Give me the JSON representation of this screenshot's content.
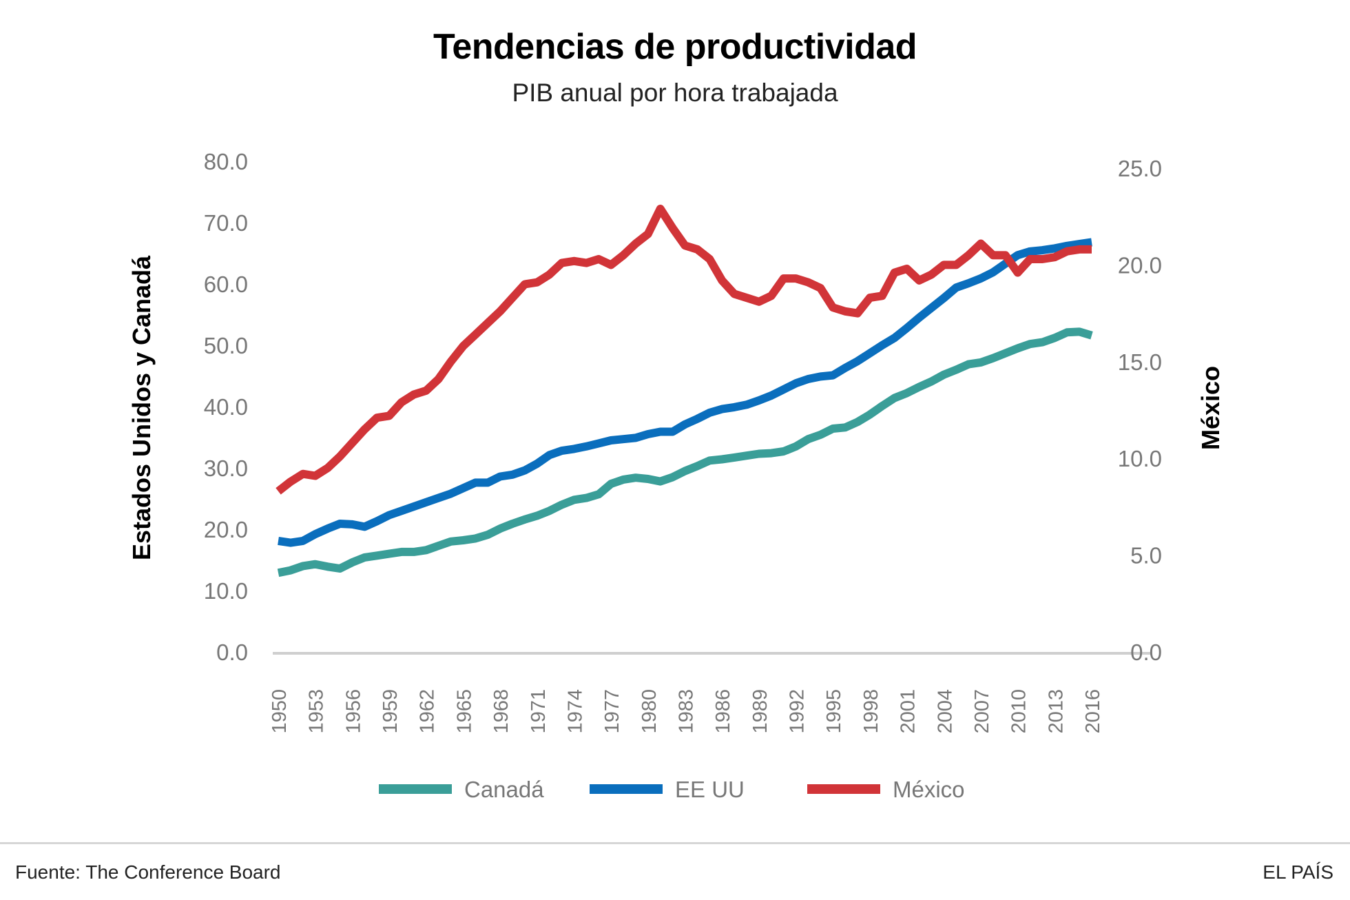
{
  "header": {
    "title": "Tendencias de productividad",
    "subtitle": "PIB anual por hora trabajada"
  },
  "footer": {
    "source": "Fuente: The Conference Board",
    "brand": "EL PAÍS"
  },
  "chart_data": {
    "type": "line",
    "title": "Tendencias de productividad",
    "subtitle": "PIB anual por hora trabajada",
    "ylabel_left": "Estados Unidos y Canadá",
    "ylabel_right": "México",
    "ylim_left": [
      0,
      80
    ],
    "ylim_right": [
      0,
      25
    ],
    "yticks_left": [
      "0.0",
      "10.0",
      "20.0",
      "30.0",
      "40.0",
      "50.0",
      "60.0",
      "70.0",
      "80.0"
    ],
    "yticks_right": [
      "0.0",
      "5.0",
      "10.0",
      "15.0",
      "20.0",
      "25.0"
    ],
    "xticks": [
      "1950",
      "1953",
      "1956",
      "1959",
      "1962",
      "1965",
      "1968",
      "1971",
      "1974",
      "1977",
      "1980",
      "1983",
      "1986",
      "1989",
      "1992",
      "1995",
      "1998",
      "2001",
      "2004",
      "2007",
      "2010",
      "2013",
      "2016"
    ],
    "x_start": 1950,
    "x_end": 2016,
    "grid": false,
    "legend_placement": "bottom",
    "series": [
      {
        "name": "Canadá",
        "axis": "left",
        "color": "#3a9e98",
        "values": [
          12.9,
          13.3,
          14.0,
          14.3,
          13.9,
          13.6,
          14.6,
          15.4,
          15.7,
          16.0,
          16.3,
          16.3,
          16.6,
          17.3,
          18.0,
          18.2,
          18.5,
          19.1,
          20.1,
          20.9,
          21.6,
          22.2,
          23.0,
          24.0,
          24.8,
          25.1,
          25.7,
          27.4,
          28.1,
          28.4,
          28.2,
          27.8,
          28.5,
          29.5,
          30.3,
          31.2,
          31.4,
          31.7,
          32.0,
          32.3,
          32.4,
          32.7,
          33.5,
          34.7,
          35.4,
          36.4,
          36.6,
          37.5,
          38.7,
          40.1,
          41.4,
          42.2,
          43.2,
          44.1,
          45.2,
          46.0,
          46.9,
          47.2,
          47.9,
          48.7,
          49.5,
          50.2,
          50.5,
          51.2,
          52.1,
          52.2,
          51.6
        ]
      },
      {
        "name": "EE UU",
        "axis": "left",
        "color": "#0a6ebd",
        "values": [
          18.1,
          17.8,
          18.1,
          19.2,
          20.1,
          20.9,
          20.8,
          20.4,
          21.3,
          22.3,
          23.0,
          23.7,
          24.4,
          25.1,
          25.8,
          26.7,
          27.6,
          27.6,
          28.6,
          28.9,
          29.6,
          30.7,
          32.1,
          32.8,
          33.1,
          33.5,
          34.0,
          34.5,
          34.7,
          34.9,
          35.5,
          35.9,
          35.9,
          37.1,
          38.0,
          39.0,
          39.6,
          39.9,
          40.3,
          41.0,
          41.8,
          42.8,
          43.8,
          44.5,
          44.9,
          45.1,
          46.3,
          47.4,
          48.7,
          50.0,
          51.2,
          52.8,
          54.5,
          56.1,
          57.7,
          59.4,
          60.1,
          60.9,
          61.9,
          63.3,
          64.7,
          65.3,
          65.5,
          65.8,
          66.2,
          66.5,
          66.8
        ]
      },
      {
        "name": "México",
        "axis": "right",
        "color": "#d13438",
        "values": [
          8.3,
          8.8,
          9.2,
          9.1,
          9.5,
          10.1,
          10.8,
          11.5,
          12.1,
          12.2,
          12.9,
          13.3,
          13.5,
          14.1,
          15.0,
          15.8,
          16.4,
          17.0,
          17.6,
          18.3,
          19.0,
          19.1,
          19.5,
          20.1,
          20.2,
          20.1,
          20.3,
          20.0,
          20.5,
          21.1,
          21.6,
          22.9,
          21.9,
          21.0,
          20.8,
          20.3,
          19.2,
          18.5,
          18.3,
          18.1,
          18.4,
          19.3,
          19.3,
          19.1,
          18.8,
          17.8,
          17.6,
          17.5,
          18.3,
          18.4,
          19.6,
          19.8,
          19.2,
          19.5,
          20.0,
          20.0,
          20.5,
          21.1,
          20.5,
          20.5,
          19.6,
          20.3,
          20.3,
          20.4,
          20.7,
          20.8,
          20.8
        ]
      }
    ]
  }
}
